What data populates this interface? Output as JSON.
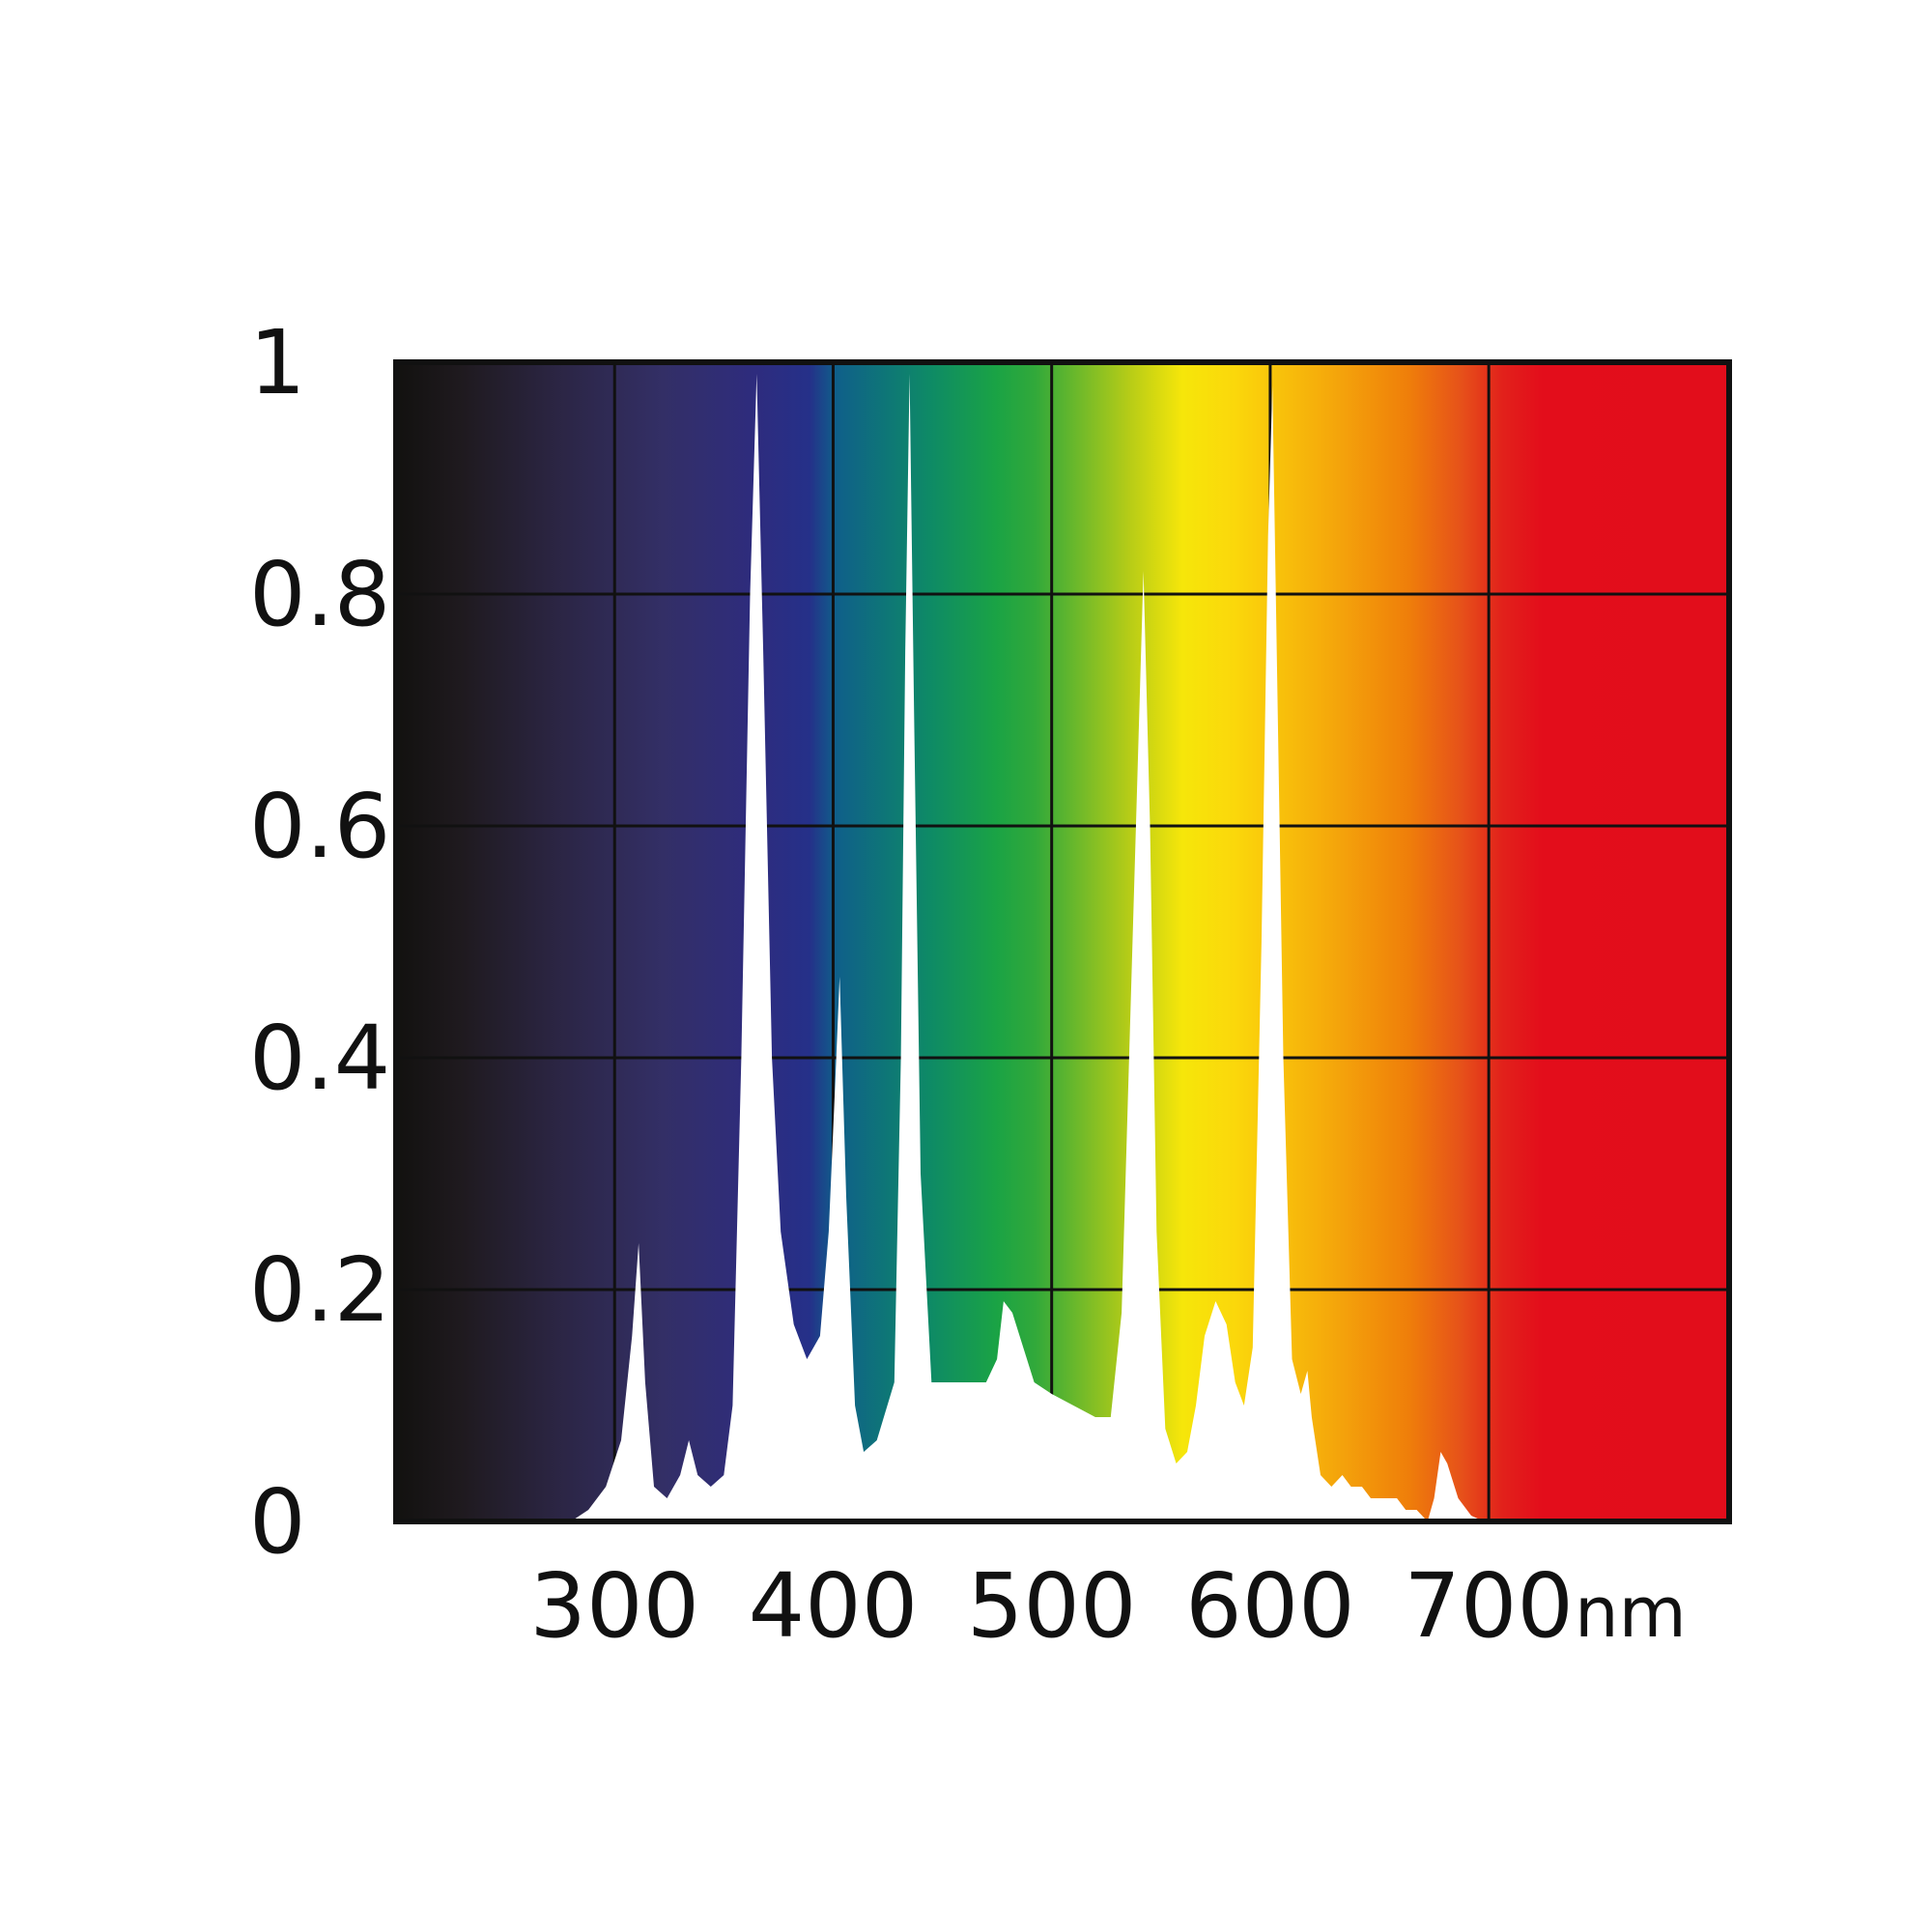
{
  "chart_data": {
    "type": "area",
    "title": "",
    "xlabel": "",
    "ylabel": "",
    "x_unit": "nm",
    "xlim": [
      200,
      810
    ],
    "ylim": [
      0,
      1
    ],
    "x_ticks": [
      300,
      400,
      500,
      600,
      700
    ],
    "x_tick_labels": [
      "300",
      "400",
      "500",
      "600",
      "700"
    ],
    "y_ticks": [
      0,
      0.2,
      0.4,
      0.6,
      0.8,
      1
    ],
    "y_tick_labels": [
      "0",
      "0.2",
      "0.4",
      "0.6",
      "0.8",
      "1"
    ],
    "grid": true,
    "background": "visible-spectrum-gradient",
    "series": [
      {
        "color": "#ffffff",
        "points": [
          [
            280,
            0
          ],
          [
            288,
            0.01
          ],
          [
            296,
            0.03
          ],
          [
            303,
            0.07
          ],
          [
            308,
            0.16
          ],
          [
            311,
            0.24
          ],
          [
            314,
            0.12
          ],
          [
            318,
            0.03
          ],
          [
            324,
            0.02
          ],
          [
            330,
            0.04
          ],
          [
            334,
            0.07
          ],
          [
            338,
            0.04
          ],
          [
            344,
            0.03
          ],
          [
            350,
            0.04
          ],
          [
            354,
            0.1
          ],
          [
            358,
            0.4
          ],
          [
            362,
            0.8
          ],
          [
            365,
            0.99
          ],
          [
            368,
            0.75
          ],
          [
            372,
            0.4
          ],
          [
            376,
            0.25
          ],
          [
            382,
            0.17
          ],
          [
            388,
            0.14
          ],
          [
            394,
            0.16
          ],
          [
            398,
            0.25
          ],
          [
            401,
            0.38
          ],
          [
            403,
            0.47
          ],
          [
            406,
            0.28
          ],
          [
            410,
            0.1
          ],
          [
            414,
            0.06
          ],
          [
            420,
            0.07
          ],
          [
            428,
            0.12
          ],
          [
            431,
            0.4
          ],
          [
            433,
            0.75
          ],
          [
            435,
            0.99
          ],
          [
            437,
            0.7
          ],
          [
            440,
            0.3
          ],
          [
            445,
            0.12
          ],
          [
            450,
            0.12
          ],
          [
            460,
            0.12
          ],
          [
            470,
            0.12
          ],
          [
            475,
            0.14
          ],
          [
            478,
            0.19
          ],
          [
            482,
            0.18
          ],
          [
            487,
            0.15
          ],
          [
            492,
            0.12
          ],
          [
            500,
            0.11
          ],
          [
            510,
            0.1
          ],
          [
            520,
            0.09
          ],
          [
            527,
            0.09
          ],
          [
            532,
            0.18
          ],
          [
            537,
            0.5
          ],
          [
            542,
            0.82
          ],
          [
            545,
            0.6
          ],
          [
            548,
            0.25
          ],
          [
            552,
            0.08
          ],
          [
            557,
            0.05
          ],
          [
            562,
            0.06
          ],
          [
            566,
            0.1
          ],
          [
            570,
            0.16
          ],
          [
            575,
            0.19
          ],
          [
            580,
            0.17
          ],
          [
            584,
            0.12
          ],
          [
            588,
            0.1
          ],
          [
            592,
            0.15
          ],
          [
            596,
            0.5
          ],
          [
            599,
            0.85
          ],
          [
            601,
            0.98
          ],
          [
            603,
            0.75
          ],
          [
            606,
            0.4
          ],
          [
            610,
            0.14
          ],
          [
            614,
            0.11
          ],
          [
            617,
            0.13
          ],
          [
            619,
            0.09
          ],
          [
            623,
            0.04
          ],
          [
            628,
            0.03
          ],
          [
            633,
            0.04
          ],
          [
            637,
            0.03
          ],
          [
            642,
            0.03
          ],
          [
            646,
            0.02
          ],
          [
            650,
            0.02
          ],
          [
            654,
            0.02
          ],
          [
            658,
            0.02
          ],
          [
            662,
            0.01
          ],
          [
            667,
            0.01
          ],
          [
            672,
            0.0
          ],
          [
            675,
            0.02
          ],
          [
            678,
            0.06
          ],
          [
            681,
            0.05
          ],
          [
            686,
            0.02
          ],
          [
            692,
            0.005
          ],
          [
            698,
            0
          ]
        ]
      }
    ],
    "colors": {
      "frame": "#111111",
      "grid": "#111111",
      "spectrum_stops": [
        "#12110f",
        "#1f1a1f",
        "#2b2543",
        "#332f66",
        "#2e2c7e",
        "#253089",
        "#0f5f8a",
        "#0e8a66",
        "#1aa345",
        "#32a93a",
        "#b6cc17",
        "#f6e60a",
        "#fbd70b",
        "#f5a90b",
        "#ef7e0a",
        "#e6501a",
        "#e2211b",
        "#e30d1b",
        "#e20d1b"
      ]
    }
  }
}
